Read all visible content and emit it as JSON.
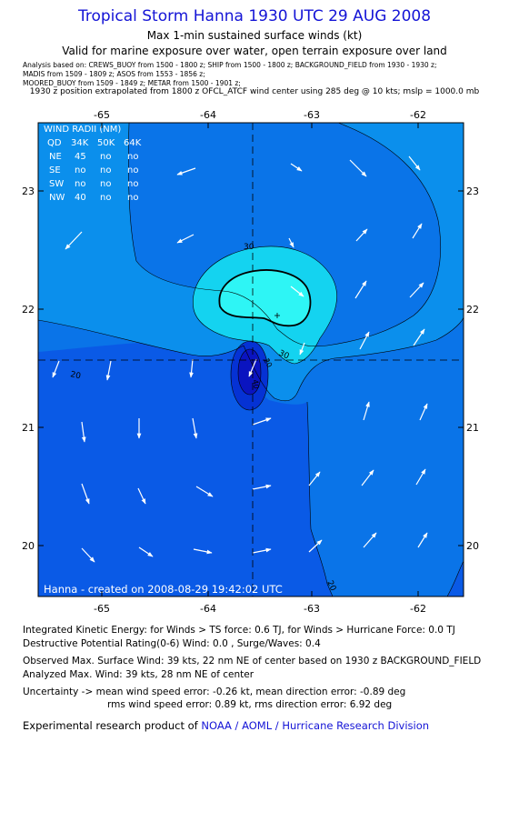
{
  "header": {
    "title": "Tropical Storm Hanna 1930 UTC 29 AUG 2008",
    "subtitle1": "Max 1-min sustained surface winds (kt)",
    "subtitle2": "Valid for marine exposure over water, open terrain exposure over land",
    "analysis_lines": [
      "Analysis based on:  CREWS_BUOY from 1500 - 1800 z;   SHIP from 1500 - 1800 z;   BACKGROUND_FIELD from 1930 - 1930 z;",
      "MADIS from 1509 - 1809 z;   ASOS from 1553 - 1856 z;",
      "MOORED_BUOY from 1509 - 1849 z;   METAR from 1500 - 1901 z;"
    ],
    "position_line": "1930 z position extrapolated from 1800 z OFCL_ATCF wind center using 285 deg @ 10 kts;  mslp = 1000.0 mb"
  },
  "map": {
    "lon_labels": [
      "-65",
      "-64",
      "-63",
      "-62"
    ],
    "lat_labels": [
      "23",
      "22",
      "21",
      "20"
    ],
    "contour_labels": [
      "30",
      "30",
      "20",
      "20",
      "20",
      "40"
    ],
    "credit": "Hanna - created on 2008-08-29 19:42:02 UTC",
    "storm_center": {
      "lon": -63.55,
      "lat": 21.55
    },
    "max_wind_marker": {
      "lon": -63.32,
      "lat": 21.93
    },
    "colors": {
      "background": "#0a74e8",
      "band_10_20": "#0a5ae6",
      "band_20_30": "#0b8fec",
      "band_30_40": "#14d3f0",
      "band_40_50": "#2ef5f5",
      "core_lt20": "#0532d4",
      "core_dark": "#0a14c0"
    },
    "wind_radii": {
      "title": "WIND RADII (NM)",
      "header": [
        "QD",
        "34K",
        "50K",
        "64K"
      ],
      "rows": [
        [
          "NE",
          "45",
          "no",
          "no"
        ],
        [
          "SE",
          "no",
          "no",
          "no"
        ],
        [
          "SW",
          "no",
          "no",
          "no"
        ],
        [
          "NW",
          "40",
          "no",
          "no"
        ]
      ]
    }
  },
  "stats": {
    "ike": "Integrated Kinetic Energy:  for Winds > TS force: 0.6 TJ,  for Winds > Hurricane Force: 0.0 TJ",
    "dpr": "Destructive Potential Rating(0-6)   Wind: 0.0 , Surge/Waves: 0.4",
    "observed": "Observed Max. Surface Wind: 39 kts, 22 nm NE of center based on 1930 z BACKGROUND_FIELD",
    "analyzed": "Analyzed Max. Wind: 39 kts, 28 nm NE of center",
    "uncert1": "Uncertainty -> mean wind speed error:  -0.26 kt,   mean direction error:  -0.89 deg",
    "uncert2": "rms wind speed error: 0.89 kt,   rms direction error: 6.92 deg",
    "credit_prefix": "Experimental research product of ",
    "credit_org": "NOAA / AOML / Hurricane Research Division"
  }
}
